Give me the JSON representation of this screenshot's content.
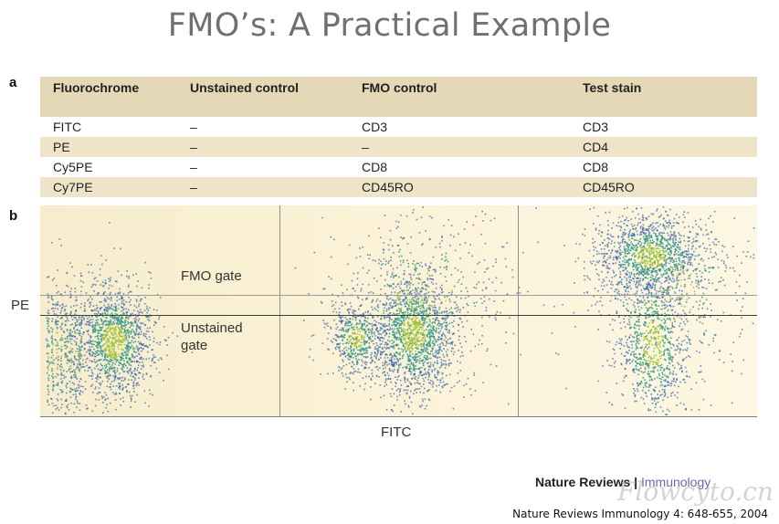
{
  "title": "FMO’s: A Practical Example",
  "panel_a_label": "a",
  "panel_b_label": "b",
  "table": {
    "headers": [
      "Fluorochrome",
      "Unstained control",
      "FMO control",
      "Test stain"
    ],
    "rows": [
      [
        "FITC",
        "–",
        "CD3",
        "CD3"
      ],
      [
        "PE",
        "–",
        "–",
        "CD4"
      ],
      [
        "Cy5PE",
        "–",
        "CD8",
        "CD8"
      ],
      [
        "Cy7PE",
        "–",
        "CD45RO",
        "CD45RO"
      ]
    ]
  },
  "plots": {
    "fmo_gate_label": "FMO gate",
    "unstained_gate_label": "Unstained gate",
    "y_axis_label": "PE",
    "x_axis_label": "FITC"
  },
  "footer": {
    "journal_name": "Nature Reviews",
    "journal_separator": "|",
    "journal_sub": "Immunology",
    "citation": "Nature Reviews Immunology 4: 648-655, 2004",
    "watermark": "Flowcyto.cn"
  },
  "colors": {
    "dot_outer": "#2a5fa6",
    "dot_mid": "#3a9a8c",
    "dot_core": "#9ec23a",
    "header_band": "#e5d8b6"
  }
}
